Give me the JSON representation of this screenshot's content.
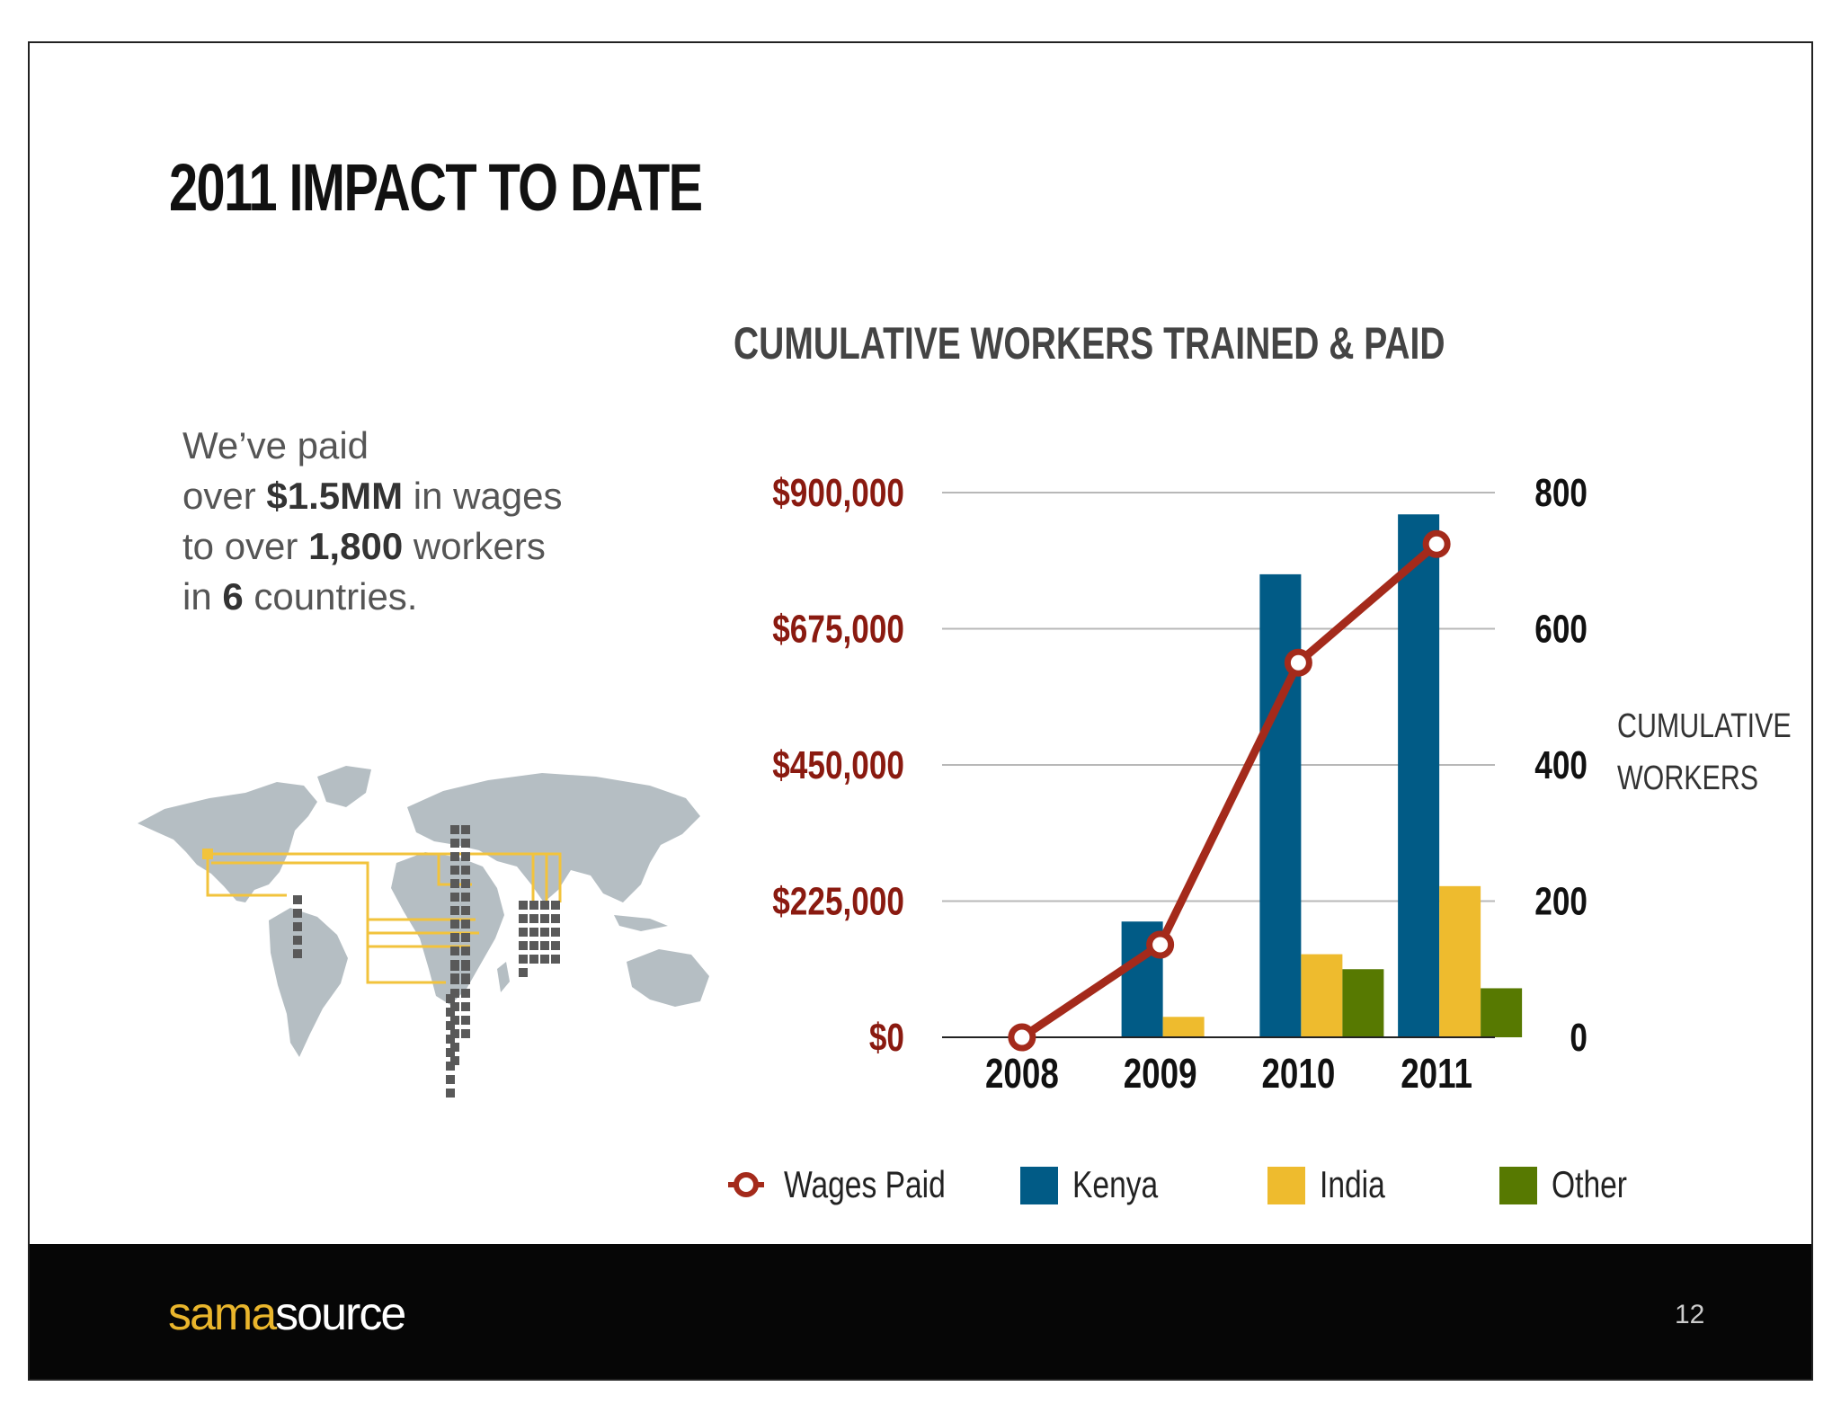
{
  "slide": {
    "title": "2011 IMPACT TO DATE",
    "page_number": "12"
  },
  "blurb": {
    "line1": "We’ve paid",
    "line2_pre": "over ",
    "line2_bold": "$1.5MM",
    "line2_post": " in wages",
    "line3_pre": "to over ",
    "line3_bold": "1,800",
    "line3_post": " workers",
    "line4_pre": "in ",
    "line4_bold": "6",
    "line4_post": " countries."
  },
  "footer": {
    "brand_part1": "sama",
    "brand_part2": "source"
  },
  "colors": {
    "kenya": "#015b86",
    "india": "#eebb2e",
    "other": "#577901",
    "wages": "#a42a1b",
    "left_axis_text": "#8a1a10",
    "map_land": "#b5bec3",
    "map_lines": "#f2c33c",
    "map_bars": "#595959"
  },
  "chart_data": {
    "type": "bar",
    "title": "CUMULATIVE WORKERS TRAINED & PAID",
    "categories": [
      "2008",
      "2009",
      "2010",
      "2011"
    ],
    "right_axis_label": [
      "CUMULATIVE",
      "WORKERS"
    ],
    "left_axis": {
      "ticks": [
        "$0",
        "$225,000",
        "$450,000",
        "$675,000",
        "$900,000"
      ],
      "ylim": [
        0,
        900000
      ]
    },
    "right_axis": {
      "ticks": [
        "0",
        "200",
        "400",
        "600",
        "800"
      ],
      "ylim": [
        0,
        800
      ]
    },
    "grid": true,
    "legend_position": "bottom",
    "series": [
      {
        "name": "Kenya",
        "kind": "bar",
        "axis": "right",
        "values": [
          0,
          170,
          680,
          768
        ]
      },
      {
        "name": "India",
        "kind": "bar",
        "axis": "right",
        "values": [
          0,
          30,
          122,
          222
        ]
      },
      {
        "name": "Other",
        "kind": "bar",
        "axis": "right",
        "values": [
          0,
          0,
          100,
          72
        ]
      },
      {
        "name": "Wages Paid",
        "kind": "line",
        "axis": "left",
        "values": [
          0,
          153000,
          619000,
          815000
        ]
      }
    ]
  }
}
